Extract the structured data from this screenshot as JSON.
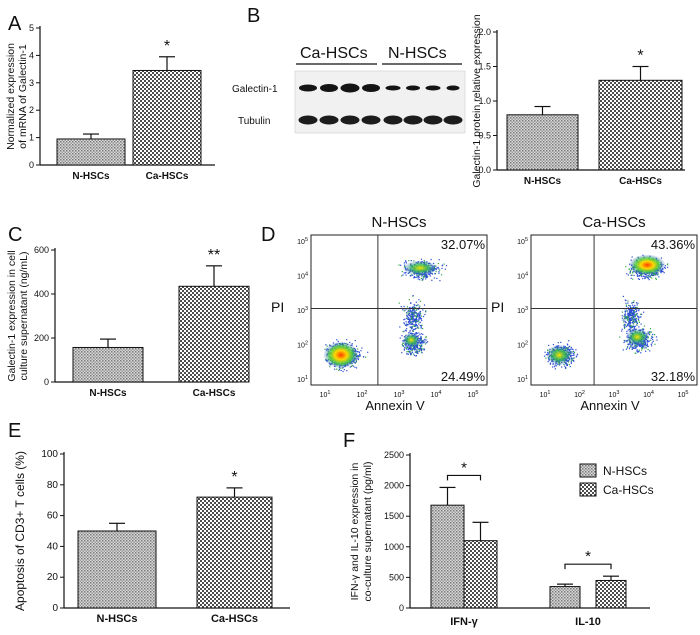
{
  "colors": {
    "ink": "#111111",
    "checker": "#4d4d4d",
    "hatch": "#8a8a8a"
  },
  "panels": [
    {
      "id": "A",
      "letter": "A",
      "type": "bar",
      "ylabel": [
        "Normalized expression",
        "of mRNA of Galectin-1"
      ],
      "categories": [
        "N-HSCs",
        "Ca-HSCs"
      ],
      "values": [
        0.95,
        3.45
      ],
      "errors": [
        0.18,
        0.5
      ],
      "ylim": [
        0,
        5
      ],
      "yticks": [
        0,
        1,
        2,
        3,
        4,
        5
      ],
      "significance": [
        "",
        "*"
      ],
      "fills": [
        "hatch",
        "checker"
      ]
    },
    {
      "id": "B",
      "letter": "B",
      "type": "bar",
      "ylabel": [
        "Galectin-1 protein relative expression"
      ],
      "categories": [
        "N-HSCs",
        "Ca-HSCs"
      ],
      "values": [
        0.8,
        1.3
      ],
      "errors": [
        0.12,
        0.2
      ],
      "ylim": [
        0,
        2.0
      ],
      "yticks": [
        "0.0",
        "0.5",
        "1.0",
        "1.5",
        "2.0"
      ],
      "significance": [
        "",
        "*"
      ],
      "fills": [
        "hatch",
        "checker"
      ]
    },
    {
      "id": "C",
      "letter": "C",
      "type": "bar",
      "ylabel": [
        "Galectin-1 expression in cell",
        "culture supernatant (ng/mL)"
      ],
      "categories": [
        "N-HSCs",
        "Ca-HSCs"
      ],
      "values": [
        157,
        435
      ],
      "errors": [
        38,
        93
      ],
      "ylim": [
        0,
        600
      ],
      "yticks": [
        0,
        200,
        400,
        600
      ],
      "significance": [
        "",
        "**"
      ],
      "fills": [
        "hatch",
        "checker"
      ]
    },
    {
      "id": "E",
      "letter": "E",
      "type": "bar",
      "ylabel": [
        "Apoptosis of CD3+ T cells (%)"
      ],
      "categories": [
        "N-HSCs",
        "Ca-HSCs"
      ],
      "values": [
        50,
        72
      ],
      "errors": [
        5,
        6
      ],
      "ylim": [
        0,
        100
      ],
      "yticks": [
        0,
        20,
        40,
        60,
        80,
        100
      ],
      "significance": [
        "",
        "*"
      ],
      "fills": [
        "hatch",
        "checker"
      ]
    },
    {
      "id": "F",
      "letter": "F",
      "type": "grouped-bar",
      "ylabel": [
        "IFN-γ  and IL-10 expression in",
        "co-culture supernatant (pg/ml)"
      ],
      "categories": [
        "IFN-γ",
        "IL-10"
      ],
      "series": [
        {
          "name": "N-HSCs",
          "values": [
            1680,
            350
          ],
          "errors": [
            290,
            40
          ],
          "fill": "hatch"
        },
        {
          "name": "Ca-HSCs",
          "values": [
            1100,
            450
          ],
          "errors": [
            300,
            70
          ],
          "fill": "checker"
        }
      ],
      "ylim": [
        0,
        2500
      ],
      "yticks": [
        0,
        500,
        1000,
        1500,
        2000,
        2500
      ],
      "significance": [
        "*",
        "*"
      ]
    }
  ],
  "blot": {
    "letter_note": "B",
    "groups": [
      "Ca-HSCs",
      "N-HSCs"
    ],
    "rows": [
      "Galectin-1",
      "Tubulin"
    ]
  },
  "flow": {
    "letter": "D",
    "xlabel": "Annexin V",
    "ylabel": "PI",
    "yticks": [
      "10^5",
      "10^4",
      "10^3",
      "10^2",
      "10^1"
    ],
    "xticks": [
      "10^1",
      "10^2",
      "10^3",
      "10^4",
      "10^5"
    ],
    "plots": [
      {
        "title": "N-HSCs",
        "upper_right": "32.07%",
        "lower_right": "24.49%"
      },
      {
        "title": "Ca-HSCs",
        "upper_right": "43.36%",
        "lower_right": "32.18%"
      }
    ]
  }
}
